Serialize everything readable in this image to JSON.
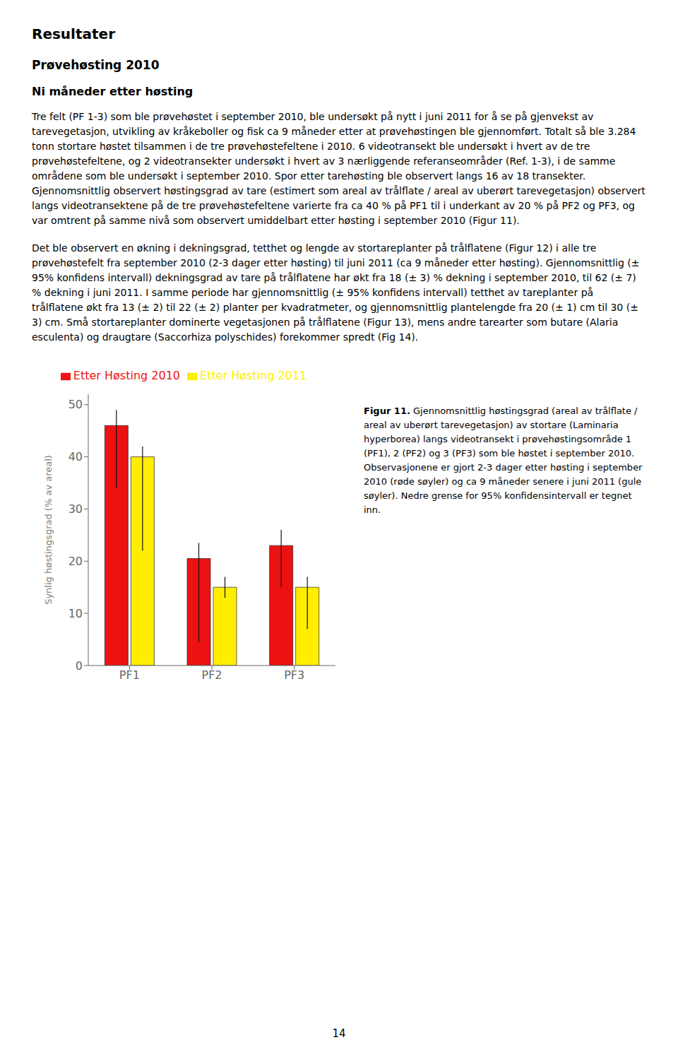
{
  "chart_data": {
    "type": "bar",
    "annotations": [
      "Resultater",
      "Prøvehøsting 2010",
      "Ni måneder etter høsting",
      "Tre felt (PF 1-3) som ble prøvehøstet i september 2010, ble undersøkt på nytt i juni 2011 for å se på gjenvekst av tarevegetasjon, utvikling av kråkeboller og fisk ca 9 måneder etter at prøvehøstingen ble gjennomført. Totalt så ble 3.284 tonn stortare høstet tilsammen i de tre prøvehøstefeltene i 2010. 6 videotransekt ble undersøkt i hvert av de tre prøvehøstefeltene, og 2 videotransekter undersøkt i hvert av 3 nærliggende referanseområder (Ref. 1-3), i de samme områdene som ble undersøkt i september 2010. Spor etter tarehøsting ble observert langs 16 av 18 transekter. Gjennomsnittlig observert høstingsgrad av tare (estimert som areal av trålflate / areal av uberørt tarevegetasjon) observert langs videotransektene på de tre prøvehøstefeltene varierte fra ca 40 % på PF1 til i underkant av 20 % på PF2 og PF3, og var omtrent på samme nivå som observert umiddelbart etter høsting i september 2010 (Figur 11).",
      "Det ble observert en økning i dekningsgrad, tetthet og lengde av stortareplanter på trålflatene (Figur 12) i alle tre prøvehøstefelt fra september 2010 (2-3 dager etter høsting) til juni 2011 (ca 9 måneder etter høsting). Gjennomsnittlig (± 95% konfidens intervall) dekningsgrad av tare på trålflatene har økt fra 18 (± 3) % dekning i september 2010, til 62 (± 7) % dekning i juni 2011. I samme periode har gjennomsnittlig (± 95% konfidens intervall) tetthet av tareplanter på trålflatene økt fra 13 (± 2) til 22 (± 2) planter per kvadratmeter, og gjennomsnittlig plantelengde fra 20 (± 1) cm til 30 (± 3) cm. Små stortareplanter dominerte vegetasjonen på trålflatene (Figur 13), mens andre tarearter som butare (Alaria esculenta) og draugtare (Saccorhiza polyschides) forekommer spredt (Fig 14).",
      "Figur 11. Gjennomsnittlig høstingsgrad (areal av trålflate / areal av uberørt tarevegetasjon) av stortare (Laminaria hyperborea) langs videotransekt i prøvehøstingsområde 1 (PF1), 2 (PF2) og 3 (PF3) som ble høstet i september 2010. Observasjonene er gjort 2-3 dager etter høsting i september 2010 (røde søyler) og ca 9 måneder senere i juni 2011 (gule søyler). Nedre grense for 95% konfidensintervall er tegnet inn.",
      "14"
    ],
    "categories": [
      "PF1",
      "PF2",
      "PF3"
    ],
    "series": [
      {
        "name": "Etter Høsting 2010",
        "color": "#ee1111",
        "values": [
          46,
          20.5,
          23
        ],
        "errors_low": [
          12,
          16,
          8
        ],
        "errors_high": [
          3,
          3,
          3
        ]
      },
      {
        "name": "Etter Høsting 2011",
        "color": "#ffee00",
        "values": [
          40,
          15,
          15
        ],
        "errors_low": [
          18,
          2,
          8
        ],
        "errors_high": [
          2,
          2,
          2
        ]
      }
    ],
    "ylabel": "Synlig høstingsgrad  (% av areal)",
    "ylim": [
      0,
      52
    ],
    "yticks": [
      0,
      10,
      20,
      30,
      40,
      50
    ],
    "grid": false,
    "legend": "top"
  }
}
